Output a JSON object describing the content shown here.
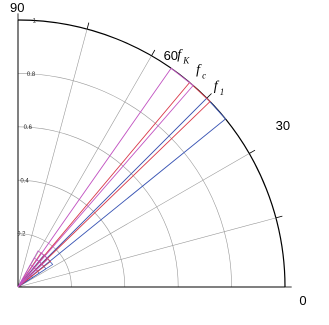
{
  "chart_data": {
    "type": "polar",
    "theta_range": [
      0,
      90
    ],
    "r_range": [
      0,
      1
    ],
    "angular_ticks": [
      "0",
      "30",
      "60",
      "90"
    ],
    "radial_ticks": [
      "0.2",
      "0.4",
      "0.6",
      "0.8",
      "1"
    ],
    "grid": true,
    "series": [
      {
        "label": "f",
        "subscript": "1",
        "color": "#3a55b4",
        "theta_deg": [
          45,
          39
        ],
        "r": [
          1.0,
          1.0
        ]
      },
      {
        "label": "f",
        "subscript": "c",
        "color": "#d93a4a",
        "theta_deg": [
          50,
          44
        ],
        "r": [
          1.0,
          1.0
        ]
      },
      {
        "label": "f",
        "subscript": "K",
        "color": "#c255c2",
        "theta_deg": [
          55,
          49
        ],
        "r": [
          1.0,
          1.0
        ]
      }
    ]
  }
}
